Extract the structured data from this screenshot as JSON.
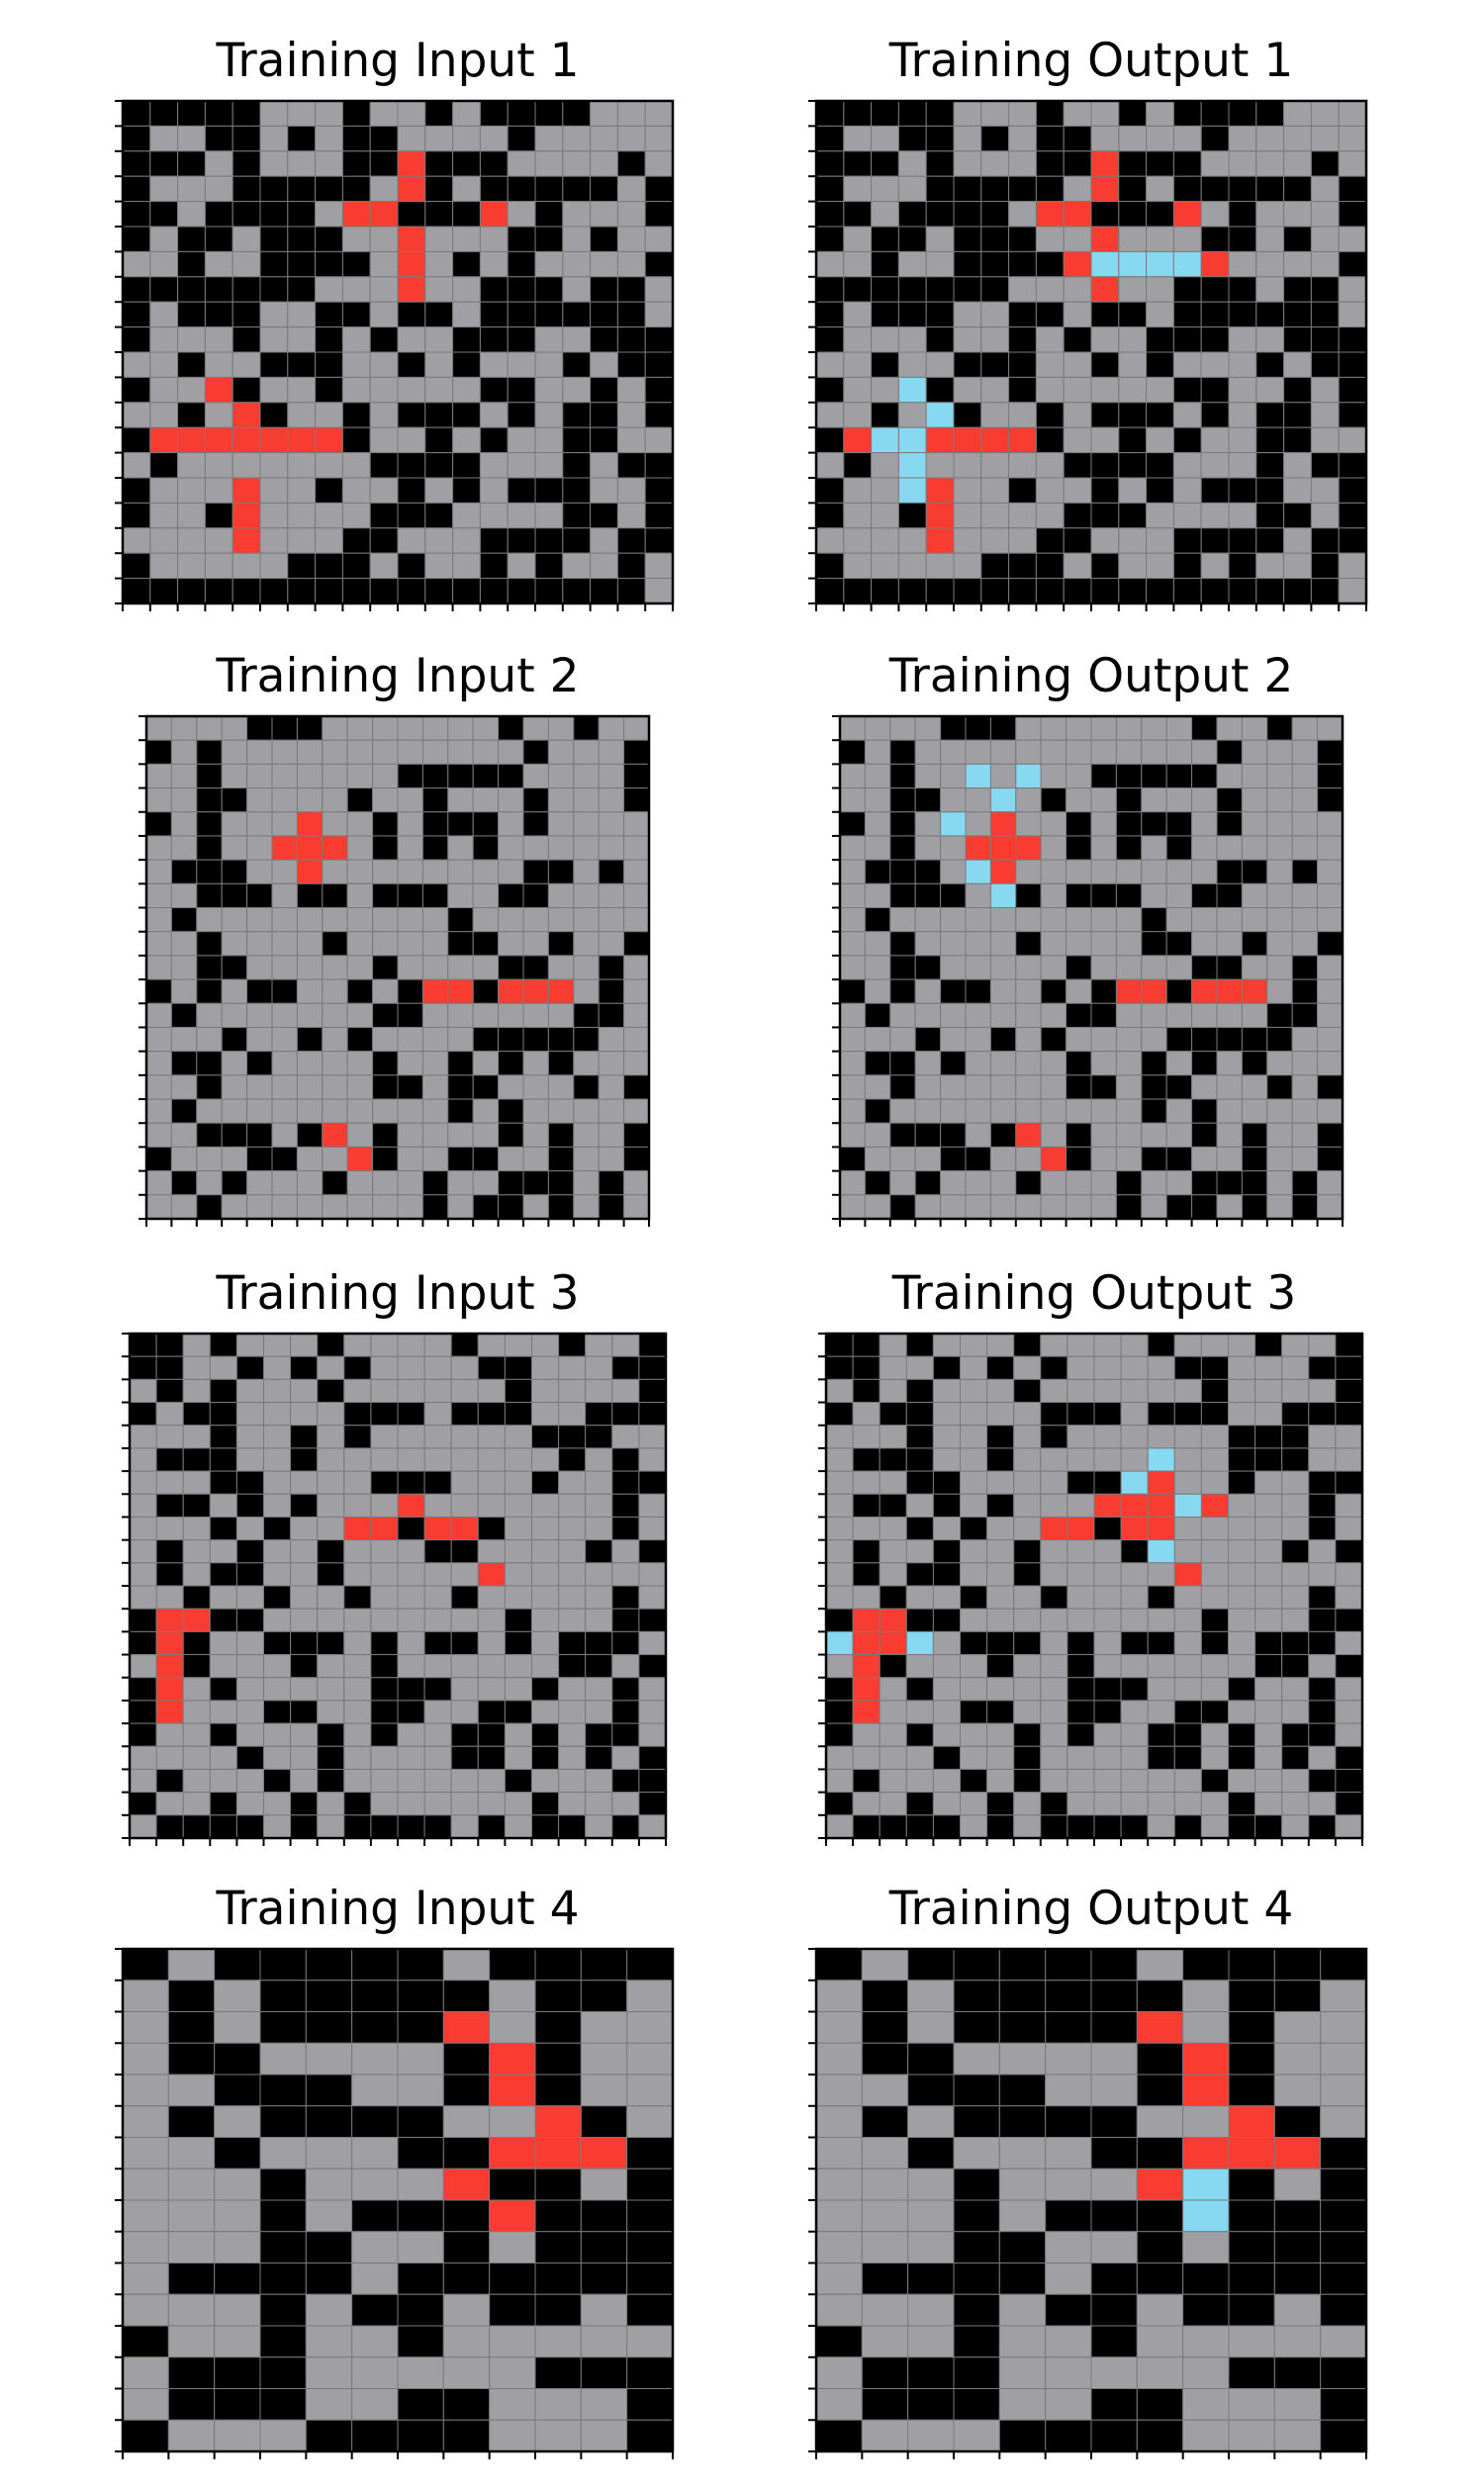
{
  "colors": {
    "0": "#000000",
    "2": "#f93c31",
    "5": "#a0a0a4",
    "8": "#87d8f1",
    "gridline": "#7a7a7a"
  },
  "panels": [
    {
      "id": "p0",
      "title": "Training Input 1",
      "grid": [
        "00000555055050000555",
        "05500505005555055555",
        "00050555002000555505",
        "05550000052050000050",
        "00500005220002505550",
        "05005000552555005055",
        "55055000052505055550",
        "00000005552550005005",
        "05000550050050000005",
        "05550550505500055000",
        "55055000550505550500",
        "05520550555550055050",
        "55052055050005050050",
        "02222222055050550055",
        "50555555500005550500",
        "05552550550505000550",
        "05502555500055550050",
        "55552555005550000500",
        "05555500050550505505",
        "00000000000000000005"
      ]
    },
    {
      "id": "p1",
      "title": "Training Output 1",
      "grid": [
        "00000555055050000555",
        "05500505005555055555",
        "00050555002000555505",
        "05550000052050000050",
        "00500005220002505550",
        "05005000552555005055",
        "55055000028888255550",
        "00000005552550005005",
        "05000550050050000005",
        "05550550505500055000",
        "55055000550505550500",
        "05580550555550055050",
        "55058055050005050050",
        "02882222055050550055",
        "50585555500005550500",
        "05582550550505000550",
        "05502555500055550050",
        "55552555005550000500",
        "05555500050550505505",
        "00000000000000000005"
      ]
    },
    {
      "id": "p2",
      "title": "Training Input 2",
      "grid": [
        "55550005555555055055",
        "05055555555555505550",
        "55055555550000055550",
        "55005555055055505550",
        "05055525505000505555",
        "55055222505050555555",
        "50005525555555500505",
        "55000500500055005555",
        "50555555555505555555",
        "55055550555500550550",
        "55005555505555005505",
        "05050055050220222505",
        "50555555500555555005",
        "55505505055550000055",
        "50050555505505050555",
        "55055555500500555050",
        "50555555555505055555",
        "55000502505555050550",
        "05550055205500550550",
        "50505550555055000505",
        "55055555555050050505"
      ]
    },
    {
      "id": "p3",
      "title": "Training Output 2",
      "grid": [
        "55550005555555055055",
        "05055555555555505550",
        "55055858550000055550",
        "55005585055055505550",
        "05058525505000505555",
        "55055222505050555555",
        "50005825555555500505",
        "55000580500055005555",
        "50555555555505555555",
        "55055550555500550550",
        "55005555505555005505",
        "05050055050220222505",
        "50555555500555555005",
        "55505505055550000055",
        "50050555505505050555",
        "55055555500500555050",
        "50555555555505055555",
        "55000502505555050550",
        "05550055205500550550",
        "50505550555055000505",
        "55055555555050050505"
      ]
    },
    {
      "id": "p4",
      "title": "Training Input 3",
      "grid": [
        "00505550555505550550",
        "00550505055550055500",
        "50505550555555055550",
        "05005555000500055000",
        "55505505055555500055",
        "50005505555555550505",
        "55500555500055505500",
        "50050505552555555505",
        "55505055220220555505",
        "50550550555005555050",
        "50500550555552555555",
        "55055055055505555505",
        "02200555555555055500",
        "02055000505005050005",
        "52055505505555550050",
        "02505555500055505505",
        "02555005500550055505",
        "05505550505500505005",
        "55550550555500505050",
        "50555050555555055500",
        "05505505055555505550",
        "50000505000050500505"
      ]
    },
    {
      "id": "p5",
      "title": "Training Output 3",
      "grid": [
        "00505550555505550550",
        "00550505055550055500",
        "50505550555555055550",
        "05005555000500055000",
        "55505505055555500055",
        "50005505555585500055",
        "55500555500825505500",
        "50050505552228255505",
        "55505055220225555505",
        "50550550555085555050",
        "50500550555552555555",
        "55055055055505555505",
        "02200555555555055500",
        "82285000505005050005",
        "52055505505555550050",
        "02505555500055505505",
        "02555005500550055505",
        "05505550505500505005",
        "55550550555500505050",
        "50555050555555055500",
        "05505505055555505550",
        "50000505000050500505"
      ]
    },
    {
      "id": "p6",
      "title": "Training Input 4",
      "grid": [
        "050000050000",
        "505000005005",
        "505000025055",
        "500555502055",
        "550005502055",
        "505000055205",
        "550555002220",
        "555055520050",
        "555050002000",
        "555005505000",
        "500005000000",
        "555050050050",
        "055055055555",
        "500055555000",
        "500055005550",
        "055500005550"
      ]
    },
    {
      "id": "p7",
      "title": "Training Output 4",
      "grid": [
        "050000050000",
        "505000005005",
        "505000025055",
        "500555502055",
        "550005502055",
        "505000055205",
        "550555002220",
        "555055528050",
        "555050008000",
        "555005505000",
        "500005000000",
        "555050050050",
        "055055055555",
        "500055555000",
        "500055005550",
        "055500005550"
      ]
    }
  ]
}
